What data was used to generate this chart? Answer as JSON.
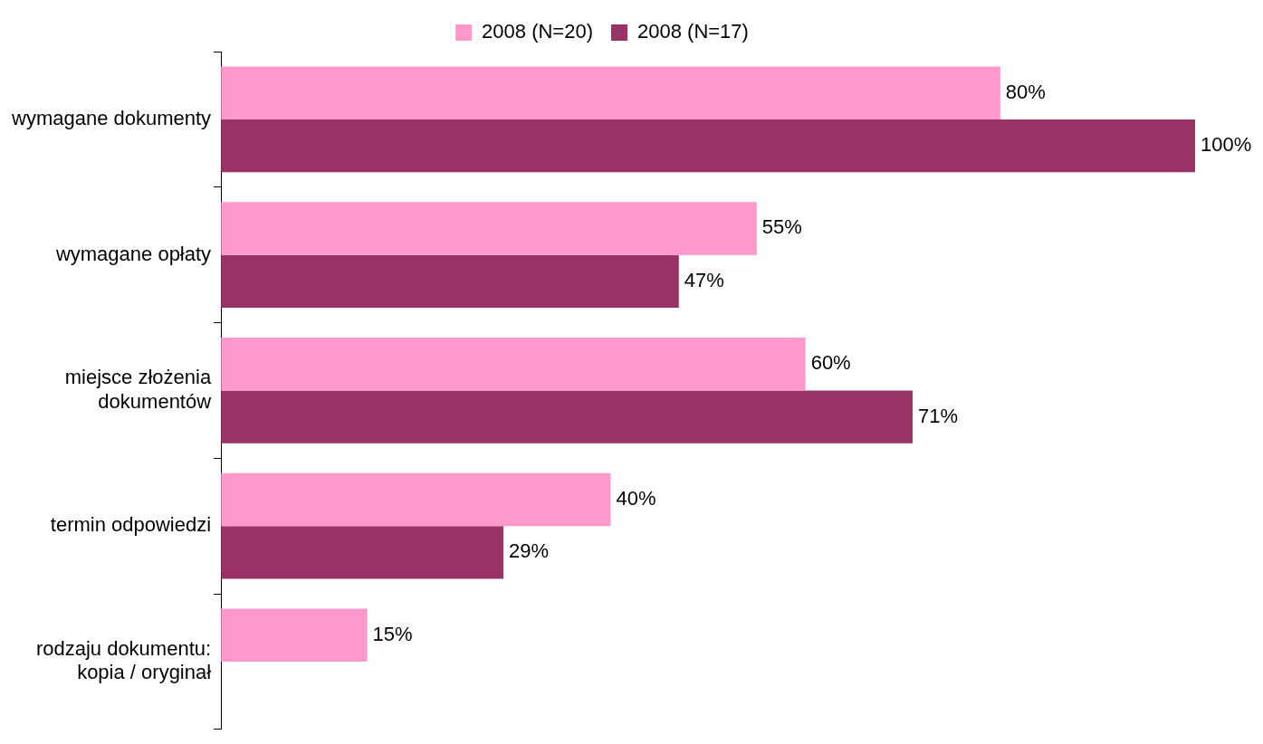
{
  "chart_data": {
    "type": "bar",
    "orientation": "horizontal",
    "categories": [
      "wymagane dokumenty",
      "wymagane opłaty",
      "miejsce złożenia dokumentów",
      "termin odpowiedzi",
      "rodzaju dokumentu: kopia / oryginał"
    ],
    "series": [
      {
        "name": "2008 (N=20)",
        "color": "#ff99cc",
        "values": [
          80,
          55,
          60,
          40,
          15
        ],
        "value_labels": [
          "80%",
          "55%",
          "60%",
          "40%",
          "15%"
        ]
      },
      {
        "name": "2008 (N=17)",
        "color": "#993366",
        "values": [
          100,
          47,
          71,
          29,
          null
        ],
        "value_labels": [
          "100%",
          "47%",
          "71%",
          "29%",
          null
        ]
      }
    ],
    "legend": "top"
  }
}
